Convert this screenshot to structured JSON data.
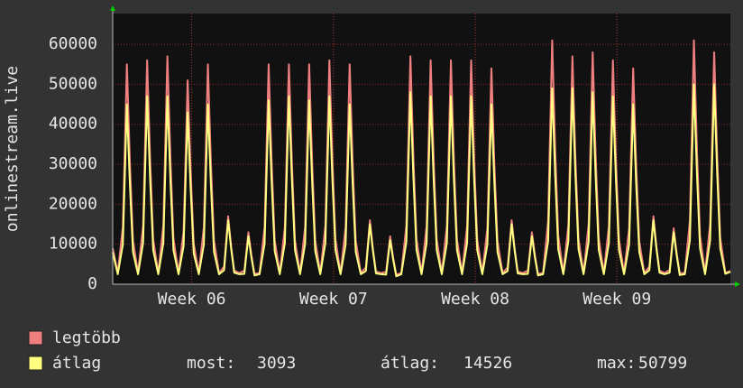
{
  "chart_data": {
    "type": "line",
    "y_label": "onlinestream.live",
    "xlim": [
      0,
      30.5
    ],
    "xticks": [
      {
        "value": 3.9,
        "label": "Week 06"
      },
      {
        "value": 10.9,
        "label": "Week 07"
      },
      {
        "value": 17.9,
        "label": "Week 08"
      },
      {
        "value": 24.9,
        "label": "Week 09"
      }
    ],
    "ylim": [
      0,
      67700
    ],
    "yticks": [
      0,
      10000,
      20000,
      30000,
      40000,
      50000,
      60000
    ],
    "grid": true,
    "x": [
      0,
      0.25,
      0.5,
      0.7,
      0.85,
      1,
      1.25,
      1.5,
      1.7,
      1.85,
      2,
      2.25,
      2.5,
      2.7,
      2.85,
      3,
      3.25,
      3.5,
      3.7,
      3.85,
      4,
      4.25,
      4.5,
      4.7,
      4.85,
      5,
      5.25,
      5.5,
      5.7,
      5.85,
      6,
      6.25,
      6.5,
      6.7,
      6.85,
      7,
      7.25,
      7.5,
      7.7,
      7.85,
      8,
      8.25,
      8.5,
      8.7,
      8.85,
      9,
      9.25,
      9.5,
      9.7,
      9.85,
      10,
      10.25,
      10.5,
      10.7,
      10.85,
      11,
      11.25,
      11.5,
      11.7,
      11.85,
      12,
      12.25,
      12.5,
      12.7,
      12.85,
      13,
      13.25,
      13.5,
      13.7,
      13.85,
      14,
      14.25,
      14.5,
      14.7,
      14.85,
      15,
      15.25,
      15.5,
      15.7,
      15.85,
      16,
      16.25,
      16.5,
      16.7,
      16.85,
      17,
      17.25,
      17.5,
      17.7,
      17.85,
      18,
      18.25,
      18.5,
      18.7,
      18.85,
      19,
      19.25,
      19.5,
      19.7,
      19.85,
      20,
      20.25,
      20.5,
      20.7,
      20.85,
      21,
      21.25,
      21.5,
      21.7,
      21.85,
      22,
      22.25,
      22.5,
      22.7,
      22.85,
      23,
      23.25,
      23.5,
      23.7,
      23.85,
      24,
      24.25,
      24.5,
      24.7,
      24.85,
      25,
      25.25,
      25.5,
      25.7,
      25.85,
      26,
      26.25,
      26.5,
      26.7,
      26.85,
      27,
      27.25,
      27.5,
      27.7,
      27.85,
      28,
      28.25,
      28.5,
      28.7,
      28.85,
      29,
      29.25,
      29.5,
      29.7,
      29.85,
      30,
      30.25,
      30.5
    ],
    "series": [
      {
        "name": "legtöbb",
        "color": "#f08080",
        "values": [
          9000,
          2800,
          14300,
          55000,
          30300,
          11000,
          2800,
          14600,
          56000,
          30800,
          11200,
          2800,
          14800,
          57000,
          31400,
          11400,
          2800,
          13300,
          51000,
          28100,
          10200,
          2800,
          14300,
          55000,
          30300,
          11000,
          2800,
          4400,
          17000,
          9400,
          3400,
          2800,
          3400,
          13000,
          7200,
          2600,
          2800,
          14300,
          55000,
          30300,
          11000,
          2800,
          14300,
          55000,
          30300,
          11000,
          2800,
          14300,
          55000,
          30300,
          11000,
          2800,
          14600,
          56000,
          30800,
          11200,
          2800,
          14300,
          55000,
          30300,
          11000,
          2800,
          4200,
          16000,
          8800,
          3200,
          2800,
          3100,
          12000,
          6600,
          2400,
          2800,
          14800,
          57000,
          31400,
          11400,
          2800,
          14600,
          56000,
          30800,
          11200,
          2800,
          14600,
          56000,
          30800,
          11200,
          2800,
          14600,
          56000,
          30800,
          11200,
          2800,
          14000,
          54000,
          29700,
          10800,
          2800,
          4200,
          16000,
          8800,
          3200,
          2800,
          3400,
          13000,
          7200,
          2600,
          2800,
          15900,
          61000,
          33600,
          12200,
          2800,
          14800,
          57000,
          31400,
          11400,
          2800,
          15100,
          58000,
          31900,
          11600,
          2800,
          14600,
          56000,
          30800,
          11200,
          2800,
          14000,
          54000,
          29700,
          10800,
          2800,
          4400,
          17000,
          9400,
          3400,
          2800,
          3600,
          14000,
          7700,
          2800,
          2800,
          15900,
          61000,
          33600,
          12200,
          2800,
          15100,
          58000,
          31900,
          11600,
          2900,
          3300
        ]
      },
      {
        "name": "átlag",
        "color": "#ffff80",
        "values": [
          8000,
          2500,
          9900,
          45000,
          24800,
          8100,
          2500,
          10300,
          47000,
          25900,
          8500,
          2500,
          10300,
          47000,
          25900,
          8500,
          2500,
          9500,
          43000,
          23700,
          7700,
          2500,
          9900,
          45000,
          24800,
          8100,
          2500,
          3500,
          16000,
          8800,
          2900,
          2500,
          2600,
          12000,
          6600,
          2200,
          2500,
          10100,
          46000,
          25300,
          8300,
          2500,
          10300,
          47000,
          25900,
          8500,
          2500,
          10100,
          46000,
          25300,
          8300,
          2500,
          10300,
          47000,
          25900,
          8500,
          2500,
          9900,
          45000,
          24800,
          8100,
          2500,
          3300,
          15000,
          8300,
          2700,
          2500,
          2400,
          11000,
          6100,
          2000,
          2500,
          10600,
          48000,
          26400,
          8600,
          2500,
          10300,
          47000,
          25900,
          8500,
          2500,
          10300,
          47000,
          25900,
          8500,
          2500,
          10300,
          47000,
          25900,
          8500,
          2500,
          9900,
          45000,
          24800,
          8100,
          2500,
          3300,
          15000,
          8300,
          2700,
          2500,
          2600,
          12000,
          6600,
          2200,
          2500,
          10800,
          49000,
          27000,
          8800,
          2500,
          10800,
          49000,
          27000,
          8800,
          2500,
          10600,
          48000,
          26400,
          8600,
          2500,
          10300,
          47000,
          25900,
          8500,
          2500,
          9900,
          45000,
          24800,
          8100,
          2500,
          3500,
          16000,
          8800,
          2900,
          2500,
          2900,
          13000,
          7200,
          2300,
          2500,
          11000,
          50000,
          27500,
          9000,
          2500,
          11000,
          50000,
          27500,
          9000,
          2600,
          3093
        ]
      }
    ],
    "legend_stats": [
      {
        "label": "most:",
        "value": 3093
      },
      {
        "label": "átlag:",
        "value": 14526
      },
      {
        "label": "max:",
        "value": 50799
      }
    ]
  }
}
